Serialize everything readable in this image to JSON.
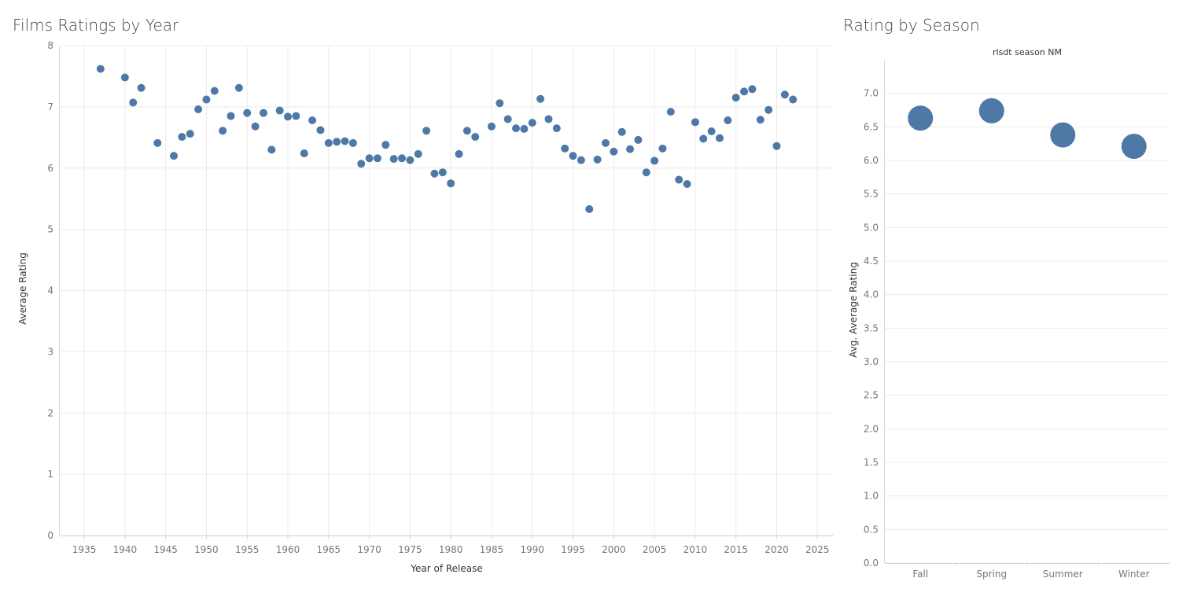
{
  "dashboard": {
    "left_title": "Films Ratings by Year",
    "right_title": "Rating by Season"
  },
  "colors": {
    "mark": "#4e79a7",
    "grid": "#ebebeb",
    "axis": "#d6d6d6"
  },
  "chart_data": [
    {
      "type": "scatter",
      "title": "Films Ratings by Year",
      "xlabel": "Year of Release",
      "ylabel": "Average Rating",
      "xlim": [
        1932,
        2027
      ],
      "ylim": [
        0,
        8
      ],
      "xticks": [
        1935,
        1940,
        1945,
        1950,
        1955,
        1960,
        1965,
        1970,
        1975,
        1980,
        1985,
        1990,
        1995,
        2000,
        2005,
        2010,
        2015,
        2020,
        2025
      ],
      "yticks": [
        0,
        1,
        2,
        3,
        4,
        5,
        6,
        7,
        8
      ],
      "grid": true,
      "x": [
        1937,
        1940,
        1941,
        1942,
        1944,
        1946,
        1947,
        1948,
        1949,
        1950,
        1951,
        1952,
        1953,
        1954,
        1955,
        1956,
        1957,
        1958,
        1959,
        1960,
        1961,
        1962,
        1963,
        1964,
        1965,
        1966,
        1967,
        1968,
        1969,
        1970,
        1971,
        1972,
        1973,
        1974,
        1975,
        1976,
        1977,
        1978,
        1979,
        1980,
        1981,
        1982,
        1983,
        1985,
        1986,
        1987,
        1988,
        1989,
        1990,
        1991,
        1992,
        1993,
        1994,
        1995,
        1996,
        1997,
        1998,
        1999,
        2000,
        2001,
        2002,
        2003,
        2004,
        2005,
        2006,
        2007,
        2008,
        2009,
        2010,
        2011,
        2012,
        2013,
        2014,
        2015,
        2016,
        2017,
        2018,
        2019,
        2020,
        2021,
        2022
      ],
      "y": [
        7.62,
        7.48,
        7.07,
        7.31,
        6.41,
        6.2,
        6.51,
        6.56,
        6.96,
        7.12,
        7.26,
        6.61,
        6.85,
        7.31,
        6.9,
        6.68,
        6.9,
        6.3,
        6.94,
        6.84,
        6.85,
        6.24,
        6.78,
        6.62,
        6.41,
        6.43,
        6.44,
        6.41,
        6.07,
        6.16,
        6.16,
        6.38,
        6.15,
        6.16,
        6.13,
        6.23,
        6.61,
        5.91,
        5.93,
        5.75,
        6.23,
        6.61,
        6.51,
        6.68,
        7.06,
        6.8,
        6.65,
        6.64,
        6.74,
        7.13,
        6.8,
        6.65,
        6.32,
        6.2,
        6.13,
        5.33,
        6.14,
        6.41,
        6.27,
        6.59,
        6.31,
        6.46,
        5.93,
        6.12,
        6.32,
        6.92,
        5.81,
        5.74,
        6.75,
        6.48,
        6.6,
        6.49,
        6.78,
        7.15,
        7.25,
        7.29,
        6.79,
        6.95,
        6.36,
        7.2,
        7.12
      ]
    },
    {
      "type": "scatter",
      "title": "Rating by Season",
      "header": "rlsdt season NM",
      "xlabel": "",
      "ylabel": "Avg. Average Rating",
      "categories": [
        "Fall",
        "Spring",
        "Summer",
        "Winter"
      ],
      "values": [
        6.63,
        6.74,
        6.38,
        6.21
      ],
      "ylim": [
        0,
        7.5
      ],
      "yticks": [
        "0.0",
        "0.5",
        "1.0",
        "1.5",
        "2.0",
        "2.5",
        "3.0",
        "3.5",
        "4.0",
        "4.5",
        "5.0",
        "5.5",
        "6.0",
        "6.5",
        "7.0"
      ],
      "grid": true
    }
  ]
}
